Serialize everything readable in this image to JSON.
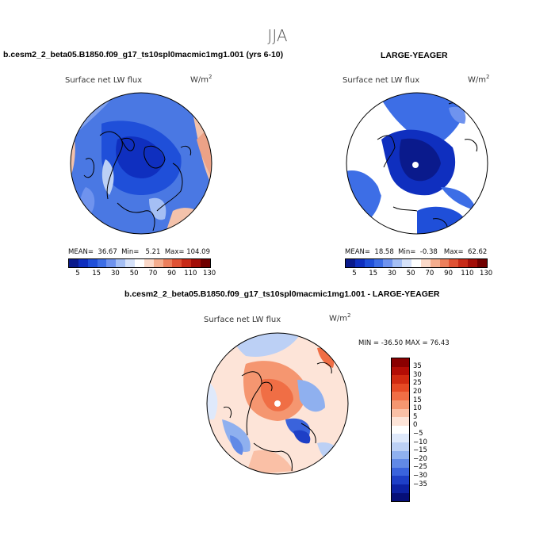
{
  "season": "JJA",
  "panels": {
    "top_left": {
      "case_title": "b.cesm2_2_beta05.B1850.f09_g17_ts10spl0macmic1mg1.001 (yrs 6-10)",
      "variable": "Surface net LW flux",
      "units": "W/m",
      "units_exp": "2",
      "stats": {
        "mean_label": "MEAN=",
        "mean": "36.67",
        "min_label": "Min=",
        "min": "5.21",
        "max_label": "Max=",
        "max": "104.09"
      }
    },
    "top_right": {
      "case_title": "LARGE-YEAGER",
      "variable": "Surface net LW flux",
      "units": "W/m",
      "units_exp": "2",
      "stats": {
        "mean_label": "MEAN=",
        "mean": "18.58",
        "min_label": "Min=",
        "min": "-0.38",
        "max_label": "Max=",
        "max": "62.62"
      }
    },
    "bottom": {
      "case_title": "b.cesm2_2_beta05.B1850.f09_g17_ts10spl0macmic1mg1.001 - LARGE-YEAGER",
      "variable": "Surface net LW flux",
      "units": "W/m",
      "units_exp": "2",
      "stats_text": "MIN = -36.50 MAX =  76.43"
    }
  },
  "colorbar_abs": {
    "colors": [
      "#0a1a8c",
      "#0f2fbf",
      "#1f4fd9",
      "#3d6ee6",
      "#6f93ee",
      "#a5bff4",
      "#d6e2f9",
      "#ffffff",
      "#fbd9c9",
      "#f4ad8e",
      "#ec7f5c",
      "#e05234",
      "#c82a17",
      "#a30e08",
      "#700000"
    ],
    "labels": [
      "5",
      "15",
      "30",
      "50",
      "70",
      "90",
      "110",
      "130"
    ]
  },
  "colorbar_diff": {
    "colors": [
      "#8a0000",
      "#b30d05",
      "#d12a10",
      "#e64a24",
      "#f06e45",
      "#f59670",
      "#fac0a6",
      "#fde4d8",
      "#ffffff",
      "#dfe9fb",
      "#bcd0f5",
      "#8fb0ef",
      "#6189e6",
      "#3a63dc",
      "#1e3fc6",
      "#0d22a3",
      "#060f78"
    ],
    "labels": [
      "35",
      "30",
      "25",
      "20",
      "15",
      "10",
      "5",
      "0",
      "−5",
      "−10",
      "−15",
      "−20",
      "−25",
      "−30",
      "−35"
    ]
  }
}
